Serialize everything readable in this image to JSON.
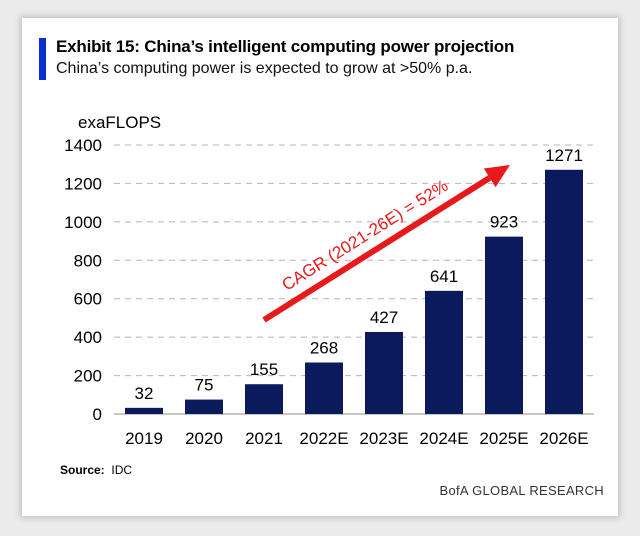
{
  "header": {
    "title": "Exhibit 15: China’s intelligent computing power projection",
    "subtitle": "China’s computing power is expected to grow at >50% p.a."
  },
  "footer": {
    "source_label": "Source:",
    "source_value": "IDC",
    "brand": "BofA GLOBAL RESEARCH"
  },
  "colors": {
    "accent": "#0b2fd1",
    "bar": "#0b1a5c",
    "arrow": "#e8191a"
  },
  "chart_data": {
    "type": "bar",
    "ylabel": "exaFLOPS",
    "categories": [
      "2019",
      "2020",
      "2021",
      "2022E",
      "2023E",
      "2024E",
      "2025E",
      "2026E"
    ],
    "values": [
      32,
      75,
      155,
      268,
      427,
      641,
      923,
      1271
    ],
    "data_labels": [
      "32",
      "75",
      "155",
      "268",
      "427",
      "641",
      "923",
      "1271"
    ],
    "ylim": [
      0,
      1400
    ],
    "yticks": [
      "0",
      "200",
      "400",
      "600",
      "800",
      "1000",
      "1200",
      "1400"
    ],
    "grid": "dashed horizontal",
    "annotation": "CAGR (2021-26E) = 52%"
  }
}
